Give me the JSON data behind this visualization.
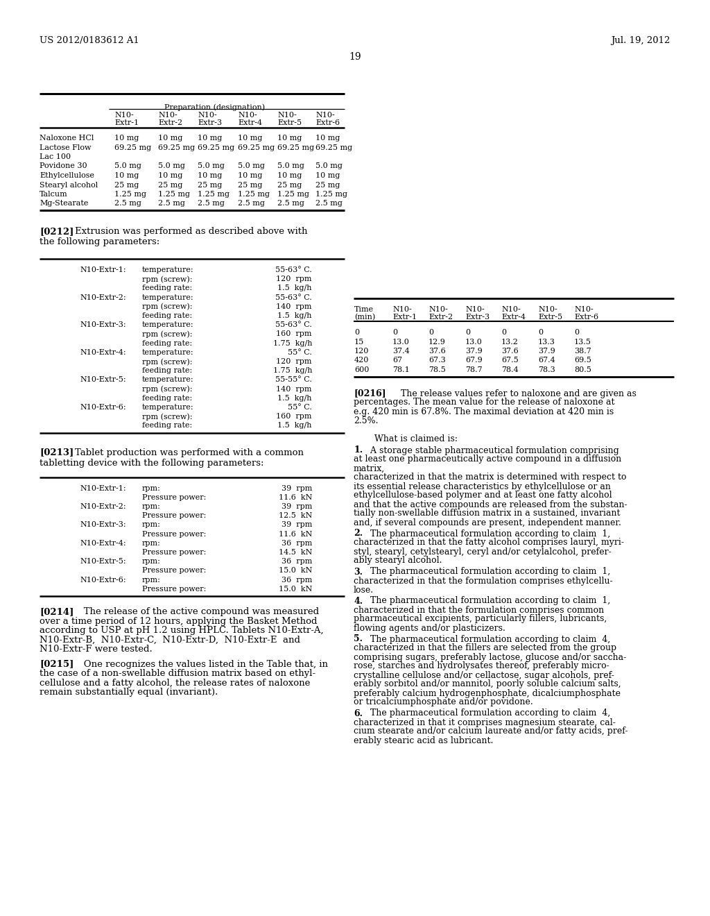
{
  "header_left": "US 2012/0183612 A1",
  "header_right": "Jul. 19, 2012",
  "page_number": "19",
  "background_color": "#ffffff",
  "table1_title": "Preparation (designation)",
  "table1_cols": [
    "N10-\nExtr-1",
    "N10-\nExtr-2",
    "N10-\nExtr-3",
    "N10-\nExtr-4",
    "N10-\nExtr-5",
    "N10-\nExtr-6"
  ],
  "table1_rows": [
    [
      "Naloxone HCl",
      "10 mg",
      "10 mg",
      "10 mg",
      "10 mg",
      "10 mg",
      "10 mg"
    ],
    [
      "Lactose Flow",
      "69.25 mg",
      "69.25 mg",
      "69.25 mg",
      "69.25 mg",
      "69.25 mg",
      "69.25 mg"
    ],
    [
      "Lac 100",
      "",
      "",
      "",
      "",
      "",
      ""
    ],
    [
      "Povidone 30",
      "5.0 mg",
      "5.0 mg",
      "5.0 mg",
      "5.0 mg",
      "5.0 mg",
      "5.0 mg"
    ],
    [
      "Ethylcellulose",
      "10 mg",
      "10 mg",
      "10 mg",
      "10 mg",
      "10 mg",
      "10 mg"
    ],
    [
      "Stearyl alcohol",
      "25 mg",
      "25 mg",
      "25 mg",
      "25 mg",
      "25 mg",
      "25 mg"
    ],
    [
      "Talcum",
      "1.25 mg",
      "1.25 mg",
      "1.25 mg",
      "1.25 mg",
      "1.25 mg",
      "1.25 mg"
    ],
    [
      "Mg-Stearate",
      "2.5 mg",
      "2.5 mg",
      "2.5 mg",
      "2.5 mg",
      "2.5 mg",
      "2.5 mg"
    ]
  ],
  "extr_params": [
    [
      "N10-Extr-1:",
      "temperature:",
      "55-63° C."
    ],
    [
      "",
      "rpm (screw):",
      "120  rpm"
    ],
    [
      "",
      "feeding rate:",
      "1.5  kg/h"
    ],
    [
      "N10-Extr-2:",
      "temperature:",
      "55-63° C."
    ],
    [
      "",
      "rpm (screw):",
      "140  rpm"
    ],
    [
      "",
      "feeding rate:",
      "1.5  kg/h"
    ],
    [
      "N10-Extr-3:",
      "temperature:",
      "55-63° C."
    ],
    [
      "",
      "rpm (screw):",
      "160  rpm"
    ],
    [
      "",
      "feeding rate:",
      "1.75  kg/h"
    ],
    [
      "N10-Extr-4:",
      "temperature:",
      "55° C."
    ],
    [
      "",
      "rpm (screw):",
      "120  rpm"
    ],
    [
      "",
      "feeding rate:",
      "1.75  kg/h"
    ],
    [
      "N10-Extr-5:",
      "temperature:",
      "55-55° C."
    ],
    [
      "",
      "rpm (screw):",
      "140  rpm"
    ],
    [
      "",
      "feeding rate:",
      "1.5  kg/h"
    ],
    [
      "N10-Extr-6:",
      "temperature:",
      "55° C."
    ],
    [
      "",
      "rpm (screw):",
      "160  rpm"
    ],
    [
      "",
      "feeding rate:",
      "1.5  kg/h"
    ]
  ],
  "table2_cols": [
    "Time\n(min)",
    "N10-\nExtr-1",
    "N10-\nExtr-2",
    "N10-\nExtr-3",
    "N10-\nExtr-4",
    "N10-\nExtr-5",
    "N10-\nExtr-6"
  ],
  "table2_rows": [
    [
      "0",
      "0",
      "0",
      "0",
      "0",
      "0",
      "0"
    ],
    [
      "15",
      "13.0",
      "12.9",
      "13.0",
      "13.2",
      "13.3",
      "13.5"
    ],
    [
      "120",
      "37.4",
      "37.6",
      "37.9",
      "37.6",
      "37.9",
      "38.7"
    ],
    [
      "420",
      "67",
      "67.3",
      "67.9",
      "67.5",
      "67.4",
      "69.5"
    ],
    [
      "600",
      "78.1",
      "78.5",
      "78.7",
      "78.4",
      "78.3",
      "80.5"
    ]
  ],
  "tablet_params": [
    [
      "N10-Extr-1:",
      "rpm:",
      "39  rpm"
    ],
    [
      "",
      "Pressure power:",
      "11.6  kN"
    ],
    [
      "N10-Extr-2:",
      "rpm:",
      "39  rpm"
    ],
    [
      "",
      "Pressure power:",
      "12.5  kN"
    ],
    [
      "N10-Extr-3:",
      "rpm:",
      "39  rpm"
    ],
    [
      "",
      "Pressure power:",
      "11.6  kN"
    ],
    [
      "N10-Extr-4:",
      "rpm:",
      "36  rpm"
    ],
    [
      "",
      "Pressure power:",
      "14.5  kN"
    ],
    [
      "N10-Extr-5:",
      "rpm:",
      "36  rpm"
    ],
    [
      "",
      "Pressure power:",
      "15.0  kN"
    ],
    [
      "N10-Extr-6:",
      "rpm:",
      "36  rpm"
    ],
    [
      "",
      "Pressure power:",
      "15.0  kN"
    ]
  ]
}
